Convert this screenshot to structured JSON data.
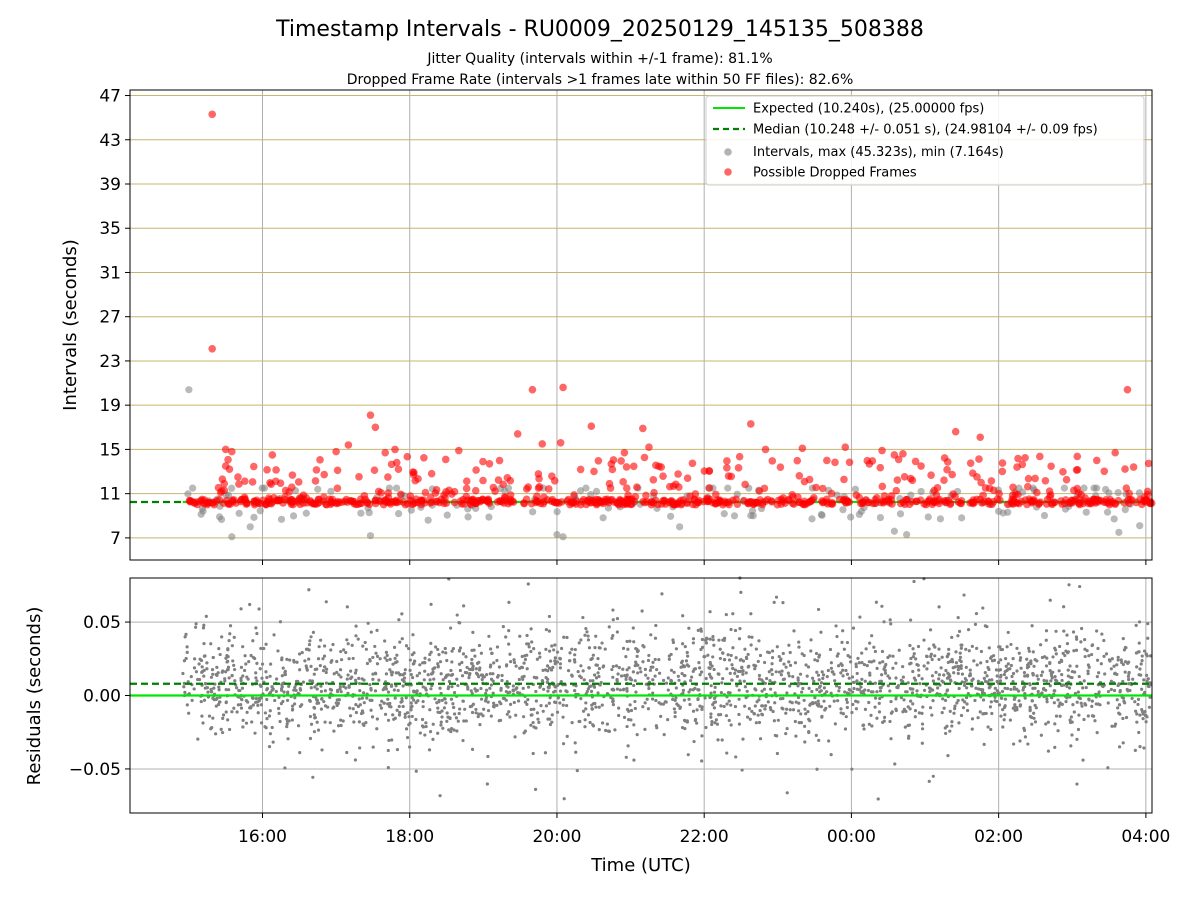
{
  "colors": {
    "expected": "#00e600",
    "median": "#008000",
    "intervals": "#808080",
    "dropped": "#ff0000",
    "grid_gold": "#c8b46e",
    "grid_gray": "#b0b0b0"
  },
  "chart_data": [
    {
      "type": "scatter",
      "title": "Timestamp Intervals - RU0009_20250129_145135_508388",
      "subtitle_line1": "Jitter Quality (intervals within +/-1 frame): 81.1%",
      "subtitle_line2": "Dropped Frame Rate (intervals >1 frames late within 50 FF files): 82.6%",
      "ylabel": "Intervals (seconds)",
      "xlim": [
        "14:12",
        "04:05"
      ],
      "ylim": [
        5.0,
        47.5
      ],
      "yticks": [
        7,
        11,
        15,
        19,
        23,
        27,
        31,
        35,
        39,
        43,
        47
      ],
      "grid": true,
      "legend_placement": "top-right",
      "legend": [
        "Expected (10.240s), (25.00000 fps)",
        "Median (10.248 +/- 0.051 s), (24.98104 +/- 0.09 fps)",
        "Intervals, max (45.323s), min (7.164s)",
        "Possible Dropped Frames"
      ],
      "expected_interval": 10.24,
      "median_interval": 10.248,
      "series": [
        {
          "name": "Possible Dropped Frames",
          "points": [
            [
              "15:19",
              45.3
            ],
            [
              "15:19",
              24.1
            ],
            [
              "15:30",
              15.0
            ],
            [
              "15:35",
              14.8
            ],
            [
              "15:30",
              13.5
            ],
            [
              "15:40",
              12.5
            ],
            [
              "16:08",
              14.5
            ],
            [
              "17:00",
              14.8
            ],
            [
              "17:10",
              15.4
            ],
            [
              "17:28",
              18.1
            ],
            [
              "17:32",
              17.0
            ],
            [
              "17:40",
              14.7
            ],
            [
              "17:48",
              15.0
            ],
            [
              "18:40",
              14.9
            ],
            [
              "19:05",
              13.7
            ],
            [
              "19:28",
              16.4
            ],
            [
              "19:40",
              20.4
            ],
            [
              "19:48",
              15.5
            ],
            [
              "20:05",
              20.6
            ],
            [
              "20:03",
              15.6
            ],
            [
              "20:28",
              17.1
            ],
            [
              "20:55",
              14.7
            ],
            [
              "21:10",
              16.9
            ],
            [
              "21:15",
              15.2
            ],
            [
              "21:25",
              13.4
            ],
            [
              "22:38",
              17.3
            ],
            [
              "22:50",
              15.0
            ],
            [
              "23:20",
              15.1
            ],
            [
              "23:40",
              14.0
            ],
            [
              "23:55",
              15.2
            ],
            [
              "00:25",
              14.9
            ],
            [
              "00:35",
              14.5
            ],
            [
              "00:42",
              14.6
            ],
            [
              "01:25",
              16.6
            ],
            [
              "01:45",
              16.1
            ],
            [
              "02:15",
              13.4
            ],
            [
              "03:20",
              14.0
            ],
            [
              "03:35",
              14.7
            ],
            [
              "03:45",
              20.4
            ],
            [
              "03:50",
              13.4
            ]
          ]
        },
        {
          "name": "Intervals",
          "points": [
            [
              "15:00",
              20.4
            ],
            [
              "15:35",
              7.1
            ],
            [
              "15:25",
              8.9
            ],
            [
              "15:50",
              8.0
            ],
            [
              "17:28",
              7.2
            ],
            [
              "18:15",
              8.6
            ],
            [
              "20:00",
              7.3
            ],
            [
              "20:05",
              7.1
            ],
            [
              "21:40",
              8.0
            ],
            [
              "22:40",
              9.0
            ],
            [
              "00:35",
              7.6
            ],
            [
              "00:45",
              7.3
            ],
            [
              "02:00",
              9.4
            ],
            [
              "03:38",
              7.5
            ],
            [
              "03:55",
              8.1
            ]
          ]
        }
      ]
    },
    {
      "type": "scatter",
      "title": "",
      "xlabel": "Time (UTC)",
      "ylabel": "Residuals (seconds)",
      "xlim": [
        "14:12",
        "04:05"
      ],
      "ylim": [
        -0.08,
        0.08
      ],
      "yticks": [
        "0.05",
        "0.00",
        "−0.05"
      ],
      "xticks": [
        "16:00",
        "18:00",
        "20:00",
        "22:00",
        "00:00",
        "02:00",
        "04:00"
      ],
      "grid": true,
      "expected_residual": 0.0,
      "median_residual": 0.008,
      "residual_spread_sd": 0.018
    }
  ]
}
